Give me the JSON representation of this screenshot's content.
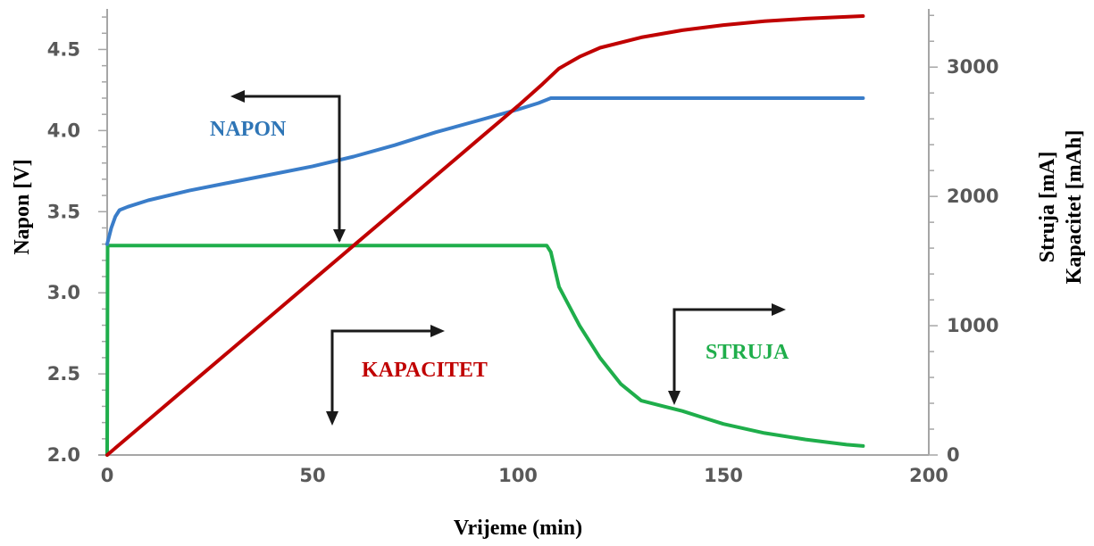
{
  "chart_data": {
    "type": "line",
    "xlabel": "Vrijeme (min)",
    "ylabel_left": "Napon [V]",
    "ylabel_right_1": "Struja [mA]",
    "ylabel_right_2": "Kapacitet [mAh]",
    "xlim": [
      0,
      200
    ],
    "ylim_left": [
      2.0,
      4.75
    ],
    "ylim_right": [
      0,
      3450
    ],
    "x_ticks": [
      "0",
      "50",
      "100",
      "150",
      "200"
    ],
    "y_left_ticks": [
      "2.0",
      "2.5",
      "3.0",
      "3.5",
      "4.0",
      "4.5"
    ],
    "y_right_ticks": [
      "0",
      "1000",
      "2000",
      "3000"
    ],
    "grid": false,
    "legend": "none",
    "series": [
      {
        "name": "NAPON",
        "axis": "left",
        "color": "#3A7DC9",
        "points": [
          [
            0,
            3.3
          ],
          [
            1,
            3.4
          ],
          [
            2,
            3.47
          ],
          [
            3,
            3.51
          ],
          [
            5,
            3.53
          ],
          [
            10,
            3.57
          ],
          [
            20,
            3.63
          ],
          [
            30,
            3.68
          ],
          [
            40,
            3.73
          ],
          [
            50,
            3.78
          ],
          [
            60,
            3.84
          ],
          [
            70,
            3.91
          ],
          [
            80,
            3.99
          ],
          [
            90,
            4.06
          ],
          [
            100,
            4.13
          ],
          [
            105,
            4.17
          ],
          [
            108,
            4.2
          ],
          [
            120,
            4.2
          ],
          [
            150,
            4.2
          ],
          [
            184,
            4.2
          ]
        ]
      },
      {
        "name": "KAPACITET",
        "axis": "right",
        "color": "#C00000",
        "points": [
          [
            0,
            0
          ],
          [
            10,
            270
          ],
          [
            20,
            540
          ],
          [
            30,
            810
          ],
          [
            40,
            1080
          ],
          [
            50,
            1350
          ],
          [
            60,
            1620
          ],
          [
            70,
            1890
          ],
          [
            80,
            2160
          ],
          [
            90,
            2430
          ],
          [
            100,
            2700
          ],
          [
            106,
            2870
          ],
          [
            110,
            2990
          ],
          [
            115,
            3080
          ],
          [
            120,
            3150
          ],
          [
            130,
            3230
          ],
          [
            140,
            3285
          ],
          [
            150,
            3325
          ],
          [
            160,
            3355
          ],
          [
            170,
            3375
          ],
          [
            184,
            3395
          ]
        ]
      },
      {
        "name": "STRUJA",
        "axis": "right",
        "color": "#1FAE4B",
        "points": [
          [
            0,
            0
          ],
          [
            0.1,
            1620
          ],
          [
            5,
            1620
          ],
          [
            50,
            1620
          ],
          [
            100,
            1620
          ],
          [
            107,
            1620
          ],
          [
            108,
            1570
          ],
          [
            110,
            1300
          ],
          [
            115,
            1000
          ],
          [
            120,
            750
          ],
          [
            125,
            550
          ],
          [
            130,
            420
          ],
          [
            135,
            380
          ],
          [
            140,
            340
          ],
          [
            145,
            290
          ],
          [
            150,
            240
          ],
          [
            160,
            170
          ],
          [
            170,
            120
          ],
          [
            180,
            80
          ],
          [
            184,
            70
          ]
        ]
      }
    ]
  },
  "annotations": {
    "arrow_color": "#1a1a1a"
  }
}
